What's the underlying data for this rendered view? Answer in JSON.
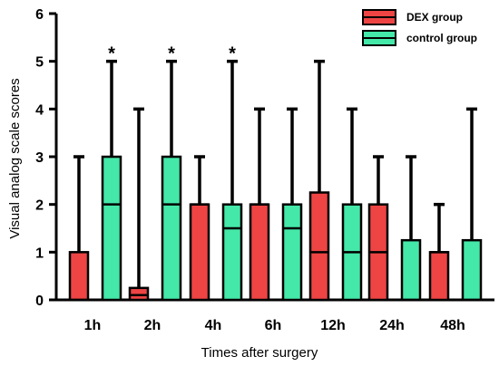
{
  "chart_data": {
    "type": "box",
    "categories": [
      "1h",
      "2h",
      "4h",
      "6h",
      "12h",
      "24h",
      "48h"
    ],
    "xlabel": "Times after surgery",
    "ylabel": "Visual analog scale scores",
    "ylim": [
      0,
      6
    ],
    "yticks": [
      0,
      1,
      2,
      3,
      4,
      5,
      6
    ],
    "legend_position": "top-right",
    "grid": false,
    "series": [
      {
        "name": "DEX group",
        "color": "#ee4444",
        "boxes": [
          {
            "min": 0,
            "q1": 0,
            "median": 0,
            "q3": 1,
            "max": 3
          },
          {
            "min": 0,
            "q1": 0,
            "median": 0.1,
            "q3": 0.25,
            "max": 4
          },
          {
            "min": 0,
            "q1": 0,
            "median": 2,
            "q3": 2,
            "max": 3
          },
          {
            "min": 0,
            "q1": 0,
            "median": 2,
            "q3": 2,
            "max": 4
          },
          {
            "min": 0,
            "q1": 0,
            "median": 1,
            "q3": 2.25,
            "max": 5
          },
          {
            "min": 0,
            "q1": 0,
            "median": 1,
            "q3": 2,
            "max": 3
          },
          {
            "min": 0,
            "q1": 0,
            "median": 1,
            "q3": 1,
            "max": 2
          }
        ]
      },
      {
        "name": "control group",
        "color": "#44e8a8",
        "boxes": [
          {
            "min": 0,
            "q1": 0,
            "median": 2,
            "q3": 3,
            "max": 5
          },
          {
            "min": 0,
            "q1": 0,
            "median": 2,
            "q3": 3,
            "max": 5
          },
          {
            "min": 0,
            "q1": 0,
            "median": 1.5,
            "q3": 2,
            "max": 5
          },
          {
            "min": 0,
            "q1": 0,
            "median": 1.5,
            "q3": 2,
            "max": 4
          },
          {
            "min": 0,
            "q1": 0,
            "median": 1,
            "q3": 2,
            "max": 4
          },
          {
            "min": 0,
            "q1": 0,
            "median": 0,
            "q3": 1.25,
            "max": 3
          },
          {
            "min": 0,
            "q1": 0,
            "median": 0,
            "q3": 1.25,
            "max": 4
          }
        ]
      }
    ],
    "annotations": [
      {
        "category": "1h",
        "series": "control group",
        "text": "*"
      },
      {
        "category": "2h",
        "series": "control group",
        "text": "*"
      },
      {
        "category": "4h",
        "series": "control group",
        "text": "*"
      }
    ]
  }
}
